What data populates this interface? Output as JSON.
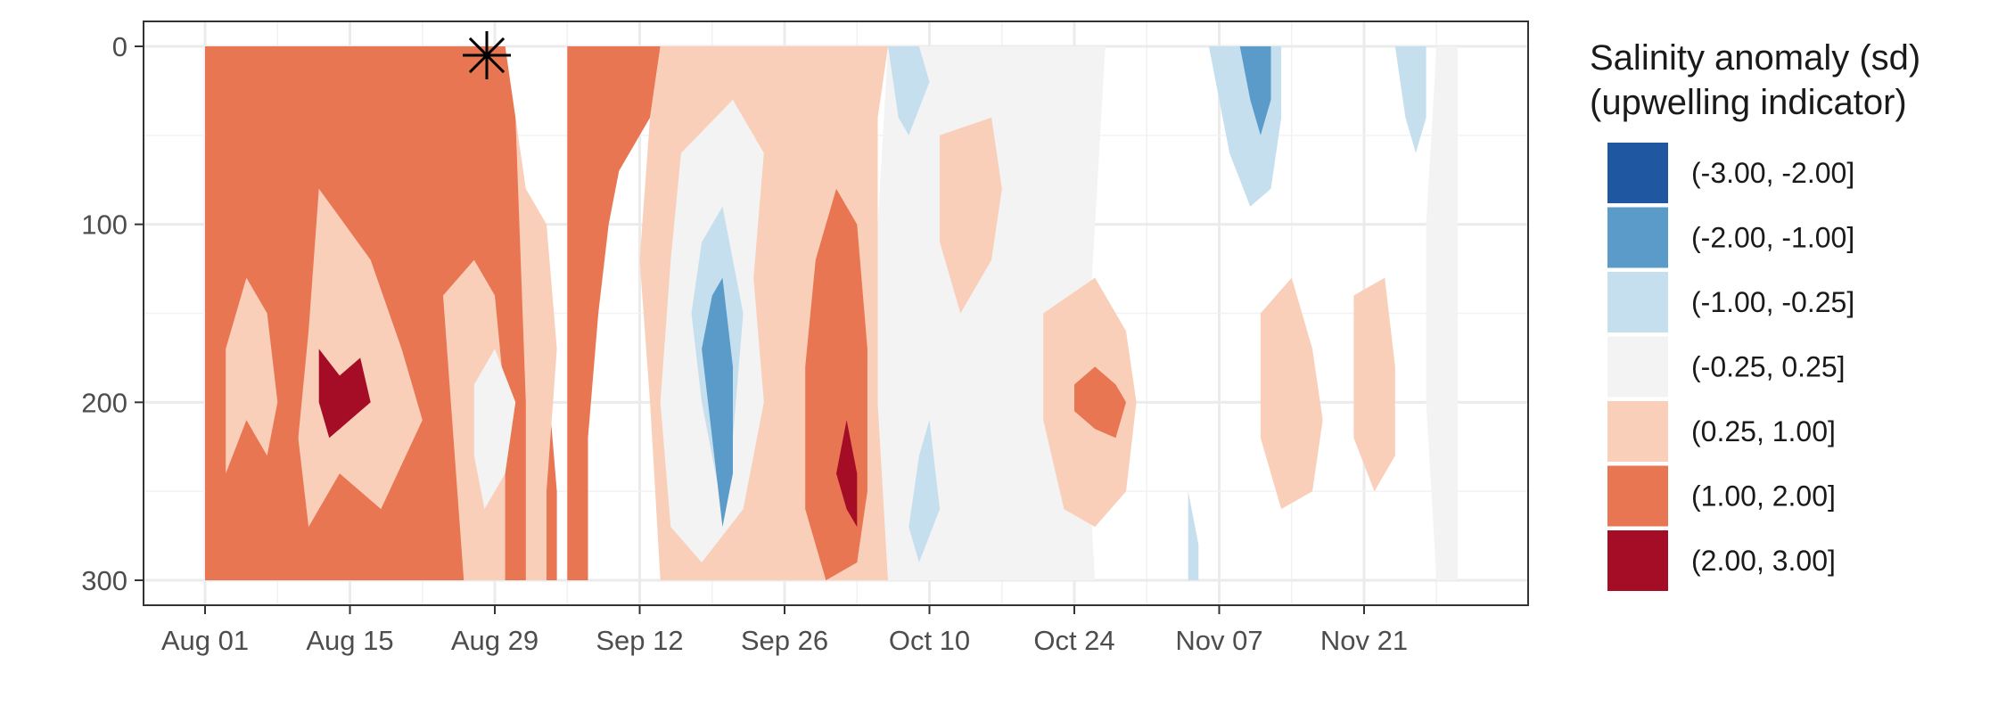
{
  "chart_data": {
    "type": "heatmap",
    "title": "",
    "xlabel": "",
    "ylabel": "",
    "x_range_days": [
      "2024-07-28",
      "2024-12-16"
    ],
    "x_ticks": [
      "Aug 01",
      "Aug 15",
      "Aug 29",
      "Sep 12",
      "Sep 26",
      "Oct 10",
      "Oct 24",
      "Nov 07",
      "Nov 21"
    ],
    "y_range": [
      0,
      300
    ],
    "y_reversed": true,
    "y_ticks": [
      "0",
      "100",
      "200",
      "300"
    ],
    "legend": {
      "title_line1": "Salinity anomaly (sd)",
      "title_line2": "(upwelling indicator)",
      "placement": "right",
      "bins": [
        {
          "label": "(-3.00, -2.00]",
          "color": "#1f57a1"
        },
        {
          "label": "(-2.00, -1.00]",
          "color": "#5a9bc9"
        },
        {
          "label": "(-1.00, -0.25]",
          "color": "#c6dfee"
        },
        {
          "label": "(-0.25, 0.25]",
          "color": "#f3f3f3"
        },
        {
          "label": "(0.25, 1.00]",
          "color": "#f9cfb9"
        },
        {
          "label": "(1.00, 2.00]",
          "color": "#e97652"
        },
        {
          "label": "(2.00, 3.00]",
          "color": "#a50c26"
        }
      ]
    },
    "marker": {
      "symbol": "asterisk",
      "date": "Aug 29",
      "depth": 5
    },
    "contour_bands": [
      {
        "bin": 5,
        "points": [
          [
            "08-01",
            0
          ],
          [
            "08-30",
            0
          ],
          [
            "08-31",
            40
          ],
          [
            "09-01",
            90
          ],
          [
            "09-02",
            130
          ],
          [
            "09-03",
            180
          ],
          [
            "09-04",
            250
          ],
          [
            "09-04",
            300
          ],
          [
            "08-01",
            300
          ]
        ]
      },
      {
        "bin": 5,
        "points": [
          [
            "09-05",
            0
          ],
          [
            "09-14",
            0
          ],
          [
            "09-13",
            40
          ],
          [
            "09-10",
            70
          ],
          [
            "09-09",
            100
          ],
          [
            "09-08",
            150
          ],
          [
            "09-07",
            220
          ],
          [
            "09-07",
            300
          ],
          [
            "09-05",
            300
          ]
        ]
      },
      {
        "bin": 4,
        "points": [
          [
            "08-03",
            170
          ],
          [
            "08-05",
            130
          ],
          [
            "08-07",
            150
          ],
          [
            "08-08",
            200
          ],
          [
            "08-07",
            230
          ],
          [
            "08-05",
            210
          ],
          [
            "08-03",
            240
          ]
        ]
      },
      {
        "bin": 4,
        "points": [
          [
            "08-12",
            80
          ],
          [
            "08-17",
            120
          ],
          [
            "08-20",
            170
          ],
          [
            "08-22",
            210
          ],
          [
            "08-18",
            260
          ],
          [
            "08-14",
            240
          ],
          [
            "08-11",
            270
          ],
          [
            "08-10",
            220
          ],
          [
            "08-11",
            160
          ]
        ]
      },
      {
        "bin": 4,
        "points": [
          [
            "08-24",
            140
          ],
          [
            "08-27",
            120
          ],
          [
            "08-29",
            140
          ],
          [
            "08-30",
            200
          ],
          [
            "08-30",
            300
          ],
          [
            "08-26",
            300
          ],
          [
            "08-25",
            220
          ]
        ]
      },
      {
        "bin": 4,
        "points": [
          [
            "08-31",
            40
          ],
          [
            "09-01",
            80
          ],
          [
            "09-03",
            100
          ],
          [
            "09-04",
            170
          ],
          [
            "09-03",
            250
          ],
          [
            "09-03",
            300
          ],
          [
            "09-01",
            300
          ],
          [
            "09-01",
            200
          ]
        ]
      },
      {
        "bin": 6,
        "points": [
          [
            "08-12",
            170
          ],
          [
            "08-14",
            185
          ],
          [
            "08-16",
            175
          ],
          [
            "08-17",
            200
          ],
          [
            "08-15",
            210
          ],
          [
            "08-13",
            220
          ],
          [
            "08-12",
            200
          ]
        ]
      },
      {
        "bin": 3,
        "points": [
          [
            "08-27",
            190
          ],
          [
            "08-29",
            170
          ],
          [
            "08-31",
            200
          ],
          [
            "08-30",
            240
          ],
          [
            "08-28",
            260
          ],
          [
            "08-27",
            230
          ]
        ]
      },
      {
        "bin": 4,
        "points": [
          [
            "09-14",
            0
          ],
          [
            "10-06",
            0
          ],
          [
            "10-05",
            40
          ],
          [
            "10-05",
            100
          ],
          [
            "10-05",
            200
          ],
          [
            "10-06",
            300
          ],
          [
            "09-14",
            300
          ],
          [
            "09-13",
            200
          ],
          [
            "09-12",
            120
          ],
          [
            "09-13",
            40
          ]
        ]
      },
      {
        "bin": 3,
        "points": [
          [
            "09-16",
            60
          ],
          [
            "09-21",
            30
          ],
          [
            "09-24",
            60
          ],
          [
            "09-23",
            130
          ],
          [
            "09-24",
            200
          ],
          [
            "09-22",
            260
          ],
          [
            "09-18",
            290
          ],
          [
            "09-15",
            270
          ],
          [
            "09-14",
            200
          ],
          [
            "09-15",
            120
          ]
        ]
      },
      {
        "bin": 2,
        "points": [
          [
            "09-18",
            110
          ],
          [
            "09-20",
            90
          ],
          [
            "09-22",
            150
          ],
          [
            "09-21",
            220
          ],
          [
            "09-20",
            260
          ],
          [
            "09-18",
            200
          ],
          [
            "09-17",
            150
          ]
        ]
      },
      {
        "bin": 1,
        "points": [
          [
            "09-19",
            140
          ],
          [
            "09-20",
            130
          ],
          [
            "09-21",
            180
          ],
          [
            "09-21",
            240
          ],
          [
            "09-20",
            270
          ],
          [
            "09-19",
            220
          ],
          [
            "09-18",
            170
          ]
        ]
      },
      {
        "bin": 5,
        "points": [
          [
            "10-01",
            80
          ],
          [
            "10-03",
            100
          ],
          [
            "10-04",
            170
          ],
          [
            "10-04",
            250
          ],
          [
            "10-03",
            290
          ],
          [
            "09-30",
            300
          ],
          [
            "09-28",
            260
          ],
          [
            "09-28",
            180
          ],
          [
            "09-29",
            120
          ]
        ]
      },
      {
        "bin": 6,
        "points": [
          [
            "10-02",
            210
          ],
          [
            "10-03",
            240
          ],
          [
            "10-03",
            270
          ],
          [
            "10-02",
            260
          ],
          [
            "10-01",
            240
          ]
        ]
      },
      {
        "bin": 3,
        "points": [
          [
            "10-06",
            0
          ],
          [
            "10-27",
            0
          ],
          [
            "10-26",
            100
          ],
          [
            "10-25",
            200
          ],
          [
            "10-26",
            300
          ],
          [
            "10-06",
            300
          ],
          [
            "10-05",
            200
          ],
          [
            "10-05",
            100
          ]
        ]
      },
      {
        "bin": 2,
        "points": [
          [
            "10-06",
            0
          ],
          [
            "10-09",
            0
          ],
          [
            "10-10",
            20
          ],
          [
            "10-08",
            50
          ],
          [
            "10-07",
            40
          ]
        ]
      },
      {
        "bin": 2,
        "points": [
          [
            "10-09",
            230
          ],
          [
            "10-10",
            210
          ],
          [
            "10-11",
            260
          ],
          [
            "10-09",
            290
          ],
          [
            "10-08",
            270
          ]
        ]
      },
      {
        "bin": 4,
        "points": [
          [
            "10-11",
            50
          ],
          [
            "10-16",
            40
          ],
          [
            "10-17",
            80
          ],
          [
            "10-16",
            120
          ],
          [
            "10-13",
            150
          ],
          [
            "10-11",
            110
          ]
        ]
      },
      {
        "bin": 2,
        "points": [
          [
            "11-06",
            0
          ],
          [
            "11-13",
            0
          ],
          [
            "11-13",
            40
          ],
          [
            "11-12",
            80
          ],
          [
            "11-10",
            90
          ],
          [
            "11-08",
            60
          ],
          [
            "11-07",
            30
          ]
        ]
      },
      {
        "bin": 1,
        "points": [
          [
            "11-09",
            0
          ],
          [
            "11-12",
            0
          ],
          [
            "11-12",
            30
          ],
          [
            "11-11",
            50
          ],
          [
            "11-10",
            30
          ]
        ]
      },
      {
        "bin": 2,
        "points": [
          [
            "11-24",
            0
          ],
          [
            "11-27",
            0
          ],
          [
            "11-27",
            40
          ],
          [
            "11-26",
            60
          ],
          [
            "11-25",
            40
          ]
        ]
      },
      {
        "bin": 4,
        "points": [
          [
            "10-21",
            150
          ],
          [
            "10-26",
            130
          ],
          [
            "10-29",
            160
          ],
          [
            "10-30",
            200
          ],
          [
            "10-29",
            250
          ],
          [
            "10-26",
            270
          ],
          [
            "10-23",
            260
          ],
          [
            "10-21",
            210
          ]
        ]
      },
      {
        "bin": 5,
        "points": [
          [
            "10-24",
            190
          ],
          [
            "10-26",
            180
          ],
          [
            "10-28",
            190
          ],
          [
            "10-29",
            200
          ],
          [
            "10-28",
            220
          ],
          [
            "10-26",
            215
          ],
          [
            "10-24",
            205
          ]
        ]
      },
      {
        "bin": 4,
        "points": [
          [
            "11-11",
            150
          ],
          [
            "11-14",
            130
          ],
          [
            "11-16",
            170
          ],
          [
            "11-17",
            210
          ],
          [
            "11-16",
            250
          ],
          [
            "11-13",
            260
          ],
          [
            "11-11",
            220
          ]
        ]
      },
      {
        "bin": 4,
        "points": [
          [
            "11-20",
            140
          ],
          [
            "11-23",
            130
          ],
          [
            "11-24",
            180
          ],
          [
            "11-24",
            230
          ],
          [
            "11-22",
            250
          ],
          [
            "11-20",
            220
          ]
        ]
      },
      {
        "bin": 3,
        "points": [
          [
            "11-28",
            0
          ],
          [
            "12-01",
            0
          ],
          [
            "12-01",
            300
          ],
          [
            "11-28",
            300
          ],
          [
            "11-27",
            200
          ],
          [
            "11-27",
            100
          ]
        ]
      },
      {
        "bin": 2,
        "points": [
          [
            "11-04",
            250
          ],
          [
            "11-05",
            280
          ],
          [
            "11-05",
            300
          ],
          [
            "11-04",
            300
          ]
        ]
      }
    ]
  }
}
